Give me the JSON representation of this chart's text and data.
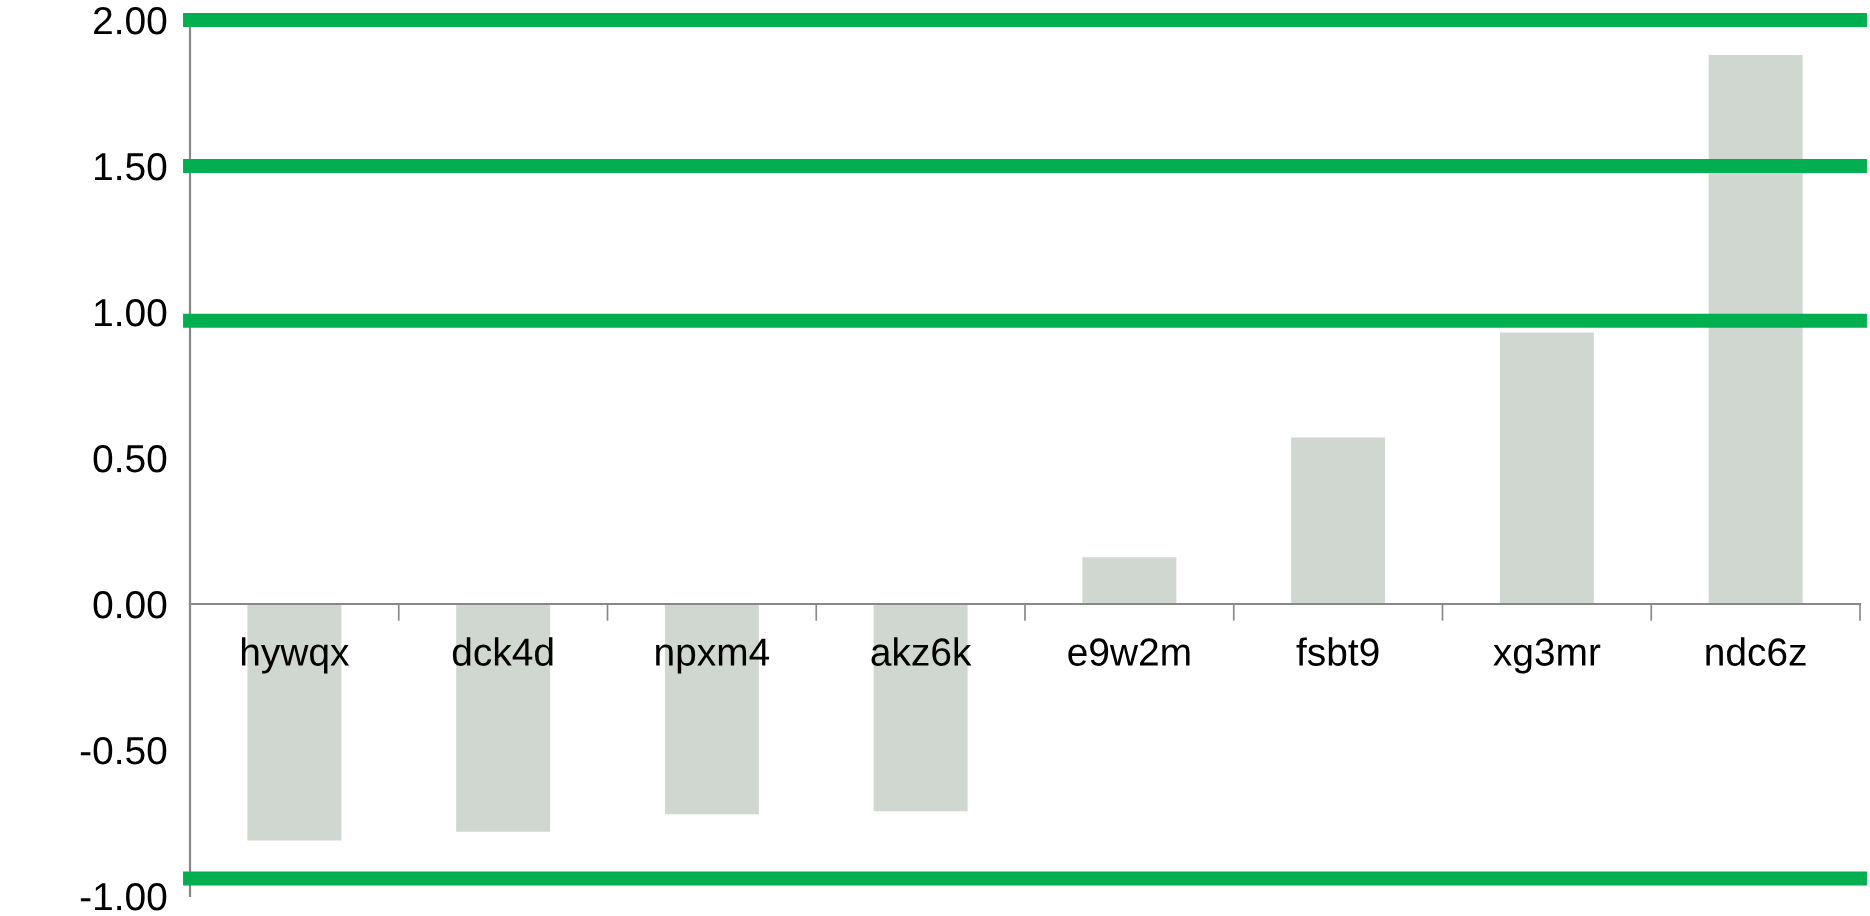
{
  "chart_data": {
    "type": "bar",
    "categories": [
      "hywqx",
      "dck4d",
      "npxm4",
      "akz6k",
      "e9w2m",
      "fsbt9",
      "xg3mr",
      "ndc6z"
    ],
    "values": [
      -0.81,
      -0.78,
      -0.72,
      -0.71,
      0.16,
      0.57,
      0.93,
      1.88
    ],
    "color": "#d0d6d0",
    "ylim": [
      -1,
      2
    ],
    "yticks": [
      {
        "value": -1,
        "label": "-1.00"
      },
      {
        "value": -0.5,
        "label": "-0.50"
      },
      {
        "value": 0,
        "label": "0.00"
      },
      {
        "value": 0.5,
        "label": "0.50"
      },
      {
        "value": 1,
        "label": "1.00"
      },
      {
        "value": 1.5,
        "label": "1.50"
      },
      {
        "value": 2,
        "label": "2.00"
      }
    ],
    "ref_lines": [
      {
        "axis": "y",
        "value": 2.0,
        "color": "#00b050"
      },
      {
        "axis": "y",
        "value": 1.5,
        "color": "#00b050"
      },
      {
        "axis": "y",
        "value": 0.97,
        "color": "#00b050"
      },
      {
        "axis": "y",
        "value": -0.94,
        "color": "#00b050"
      }
    ],
    "grid": false,
    "legend": false
  }
}
